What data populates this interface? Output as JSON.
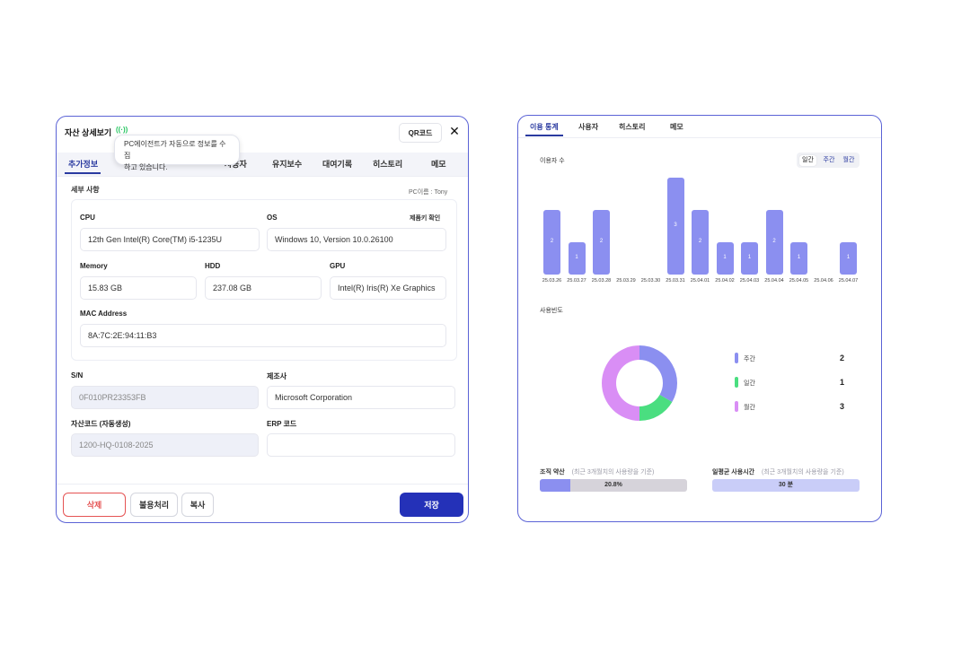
{
  "asset": {
    "title": "자산 상세보기",
    "wifi_icon": "((·))",
    "qr_label": "QR코드",
    "close_label": "✕",
    "tooltip": [
      "PC에이전트가 자동으로 정보를 수집",
      "하고 있습니다."
    ],
    "tabs": [
      "추가정보",
      "사용자",
      "유지보수",
      "대여기록",
      "히스토리",
      "메모"
    ],
    "section_label": "세부 사항",
    "pc_name": "PC이름 : Tony",
    "license_check": "제품키 확인",
    "specs": {
      "cpu_label": "CPU",
      "cpu": "12th Gen Intel(R) Core(TM) i5-1235U",
      "os_label": "OS",
      "os": "Windows 10, Version 10.0.26100",
      "memory_label": "Memory",
      "memory": "15.83 GB",
      "hdd_label": "HDD",
      "hdd": "237.08 GB",
      "gpu_label": "GPU",
      "gpu": "Intel(R) Iris(R) Xe Graphics",
      "mac_label": "MAC Address",
      "mac": "8A:7C:2E:94:11:B3"
    },
    "sn_label": "S/N",
    "sn": "0F010PR23353FB",
    "maker_label": "제조사",
    "maker": "Microsoft Corporation",
    "asset_code_label": "자산코드 (자동생성)",
    "asset_code": "1200-HQ-0108-2025",
    "erp_label": "ERP 코드",
    "erp": "",
    "buttons": {
      "delete": "삭제",
      "dispose": "불용처리",
      "copy": "복사",
      "save": "저장"
    }
  },
  "usage": {
    "tabs": [
      "이용 통계",
      "사용자",
      "히스토리",
      "메모"
    ],
    "users_label": "이용자 수",
    "period_options": [
      "일간",
      "주간",
      "월간"
    ],
    "selected_period": "일간",
    "freq_label": "사용빈도",
    "legend": [
      {
        "label": "주간",
        "value": "2",
        "color": "#8b8ff0"
      },
      {
        "label": "일간",
        "value": "1",
        "color": "#4ade80"
      },
      {
        "label": "월간",
        "value": "3",
        "color": "#d98ef5"
      }
    ],
    "rate_label": "조직 약산",
    "rate_note": "(최근 3개월치의 사용량을 기준)",
    "rate_value": "20.8%",
    "rate_fraction": 0.208,
    "avg_label": "일평균 사용시간",
    "avg_note": "(최근 3개월치의 사용량을 기준)",
    "avg_value": "30 분"
  },
  "chart_data": [
    {
      "type": "bar",
      "categories": [
        "25.03.26",
        "25.03.27",
        "25.03.28",
        "25.03.29",
        "25.03.30",
        "25.03.31",
        "25.04.01",
        "25.04.02",
        "25.04.03",
        "25.04.04",
        "25.04.05",
        "25.04.06",
        "25.04.07"
      ],
      "values": [
        2,
        1,
        2,
        0,
        0,
        3,
        2,
        1,
        1,
        2,
        1,
        0,
        1
      ],
      "ylim": [
        0,
        3
      ],
      "title": "이용자 수"
    },
    {
      "type": "pie",
      "categories": [
        "주간",
        "일간",
        "월간"
      ],
      "values": [
        2,
        1,
        3
      ],
      "title": "사용빈도"
    }
  ]
}
